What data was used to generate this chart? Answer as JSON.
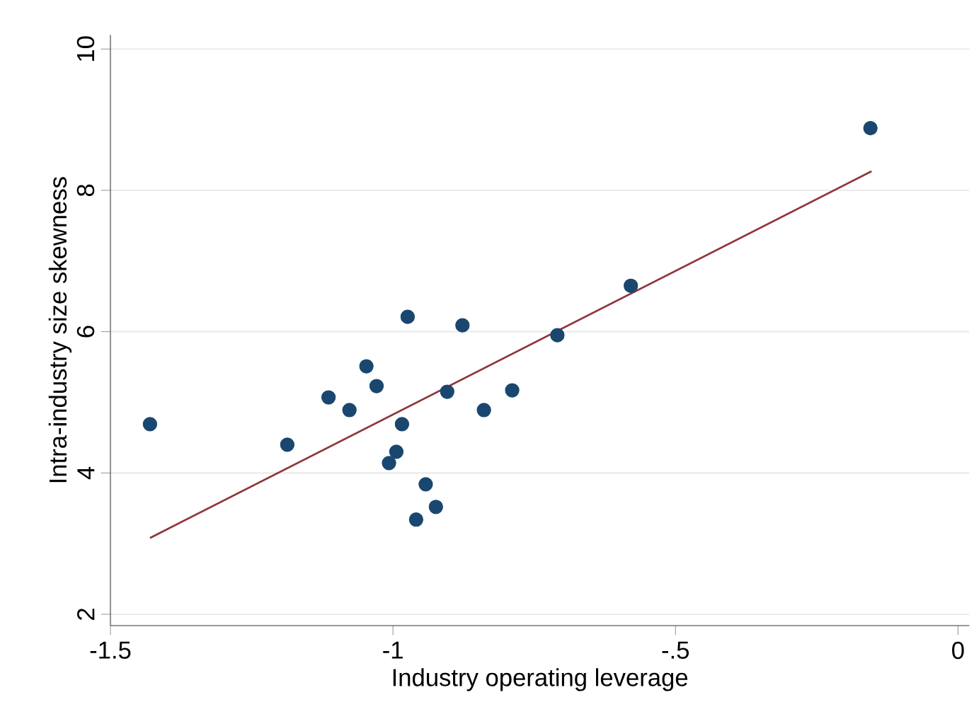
{
  "chart_data": {
    "type": "scatter",
    "xlabel": "Industry operating leverage",
    "ylabel": "Intra-industry size skewness",
    "xlim": [
      -1.5,
      0.02
    ],
    "ylim": [
      1.84,
      10.2
    ],
    "xticks": [
      -1.5,
      -1,
      {
        "value": -0.5,
        "label": "-.5"
      },
      0
    ],
    "yticks": [
      2,
      4,
      6,
      8,
      10
    ],
    "grid": "y",
    "series": [
      {
        "color": "#1a476f",
        "marker": "circle",
        "x": [
          -1.43,
          -1.187,
          -1.114,
          -1.077,
          -1.047,
          -1.029,
          -0.974,
          -0.984,
          -0.994,
          -1.007,
          -0.942,
          -0.959,
          -0.924,
          -0.904,
          -0.877,
          -0.839,
          -0.789,
          -0.709,
          -0.579,
          -0.155
        ],
        "values": [
          4.69,
          4.4,
          5.07,
          4.89,
          5.51,
          5.23,
          6.21,
          4.69,
          4.3,
          4.14,
          3.84,
          3.34,
          3.52,
          5.15,
          6.09,
          4.89,
          5.17,
          5.95,
          6.65,
          8.88
        ]
      },
      {
        "type": "line",
        "marker": "none",
        "color": "#90353b",
        "x": [
          -1.43,
          -0.153
        ],
        "values": [
          3.08,
          8.27
        ]
      }
    ]
  }
}
